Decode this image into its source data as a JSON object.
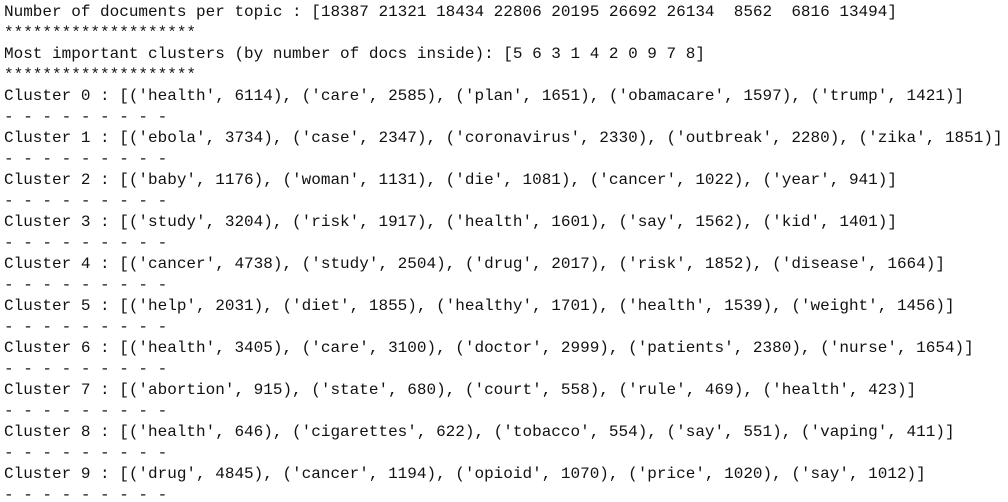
{
  "console": {
    "lines": [
      "Number of documents per topic : [18387 21321 18434 22806 20195 26692 26134  8562  6816 13494]",
      "********************",
      "Most important clusters (by number of docs inside): [5 6 3 1 4 2 0 9 7 8]",
      "********************",
      "Cluster 0 : [('health', 6114), ('care', 2585), ('plan', 1651), ('obamacare', 1597), ('trump', 1421)]",
      "- - - - - - - - -",
      "Cluster 1 : [('ebola', 3734), ('case', 2347), ('coronavirus', 2330), ('outbreak', 2280), ('zika', 1851)]",
      "- - - - - - - - -",
      "Cluster 2 : [('baby', 1176), ('woman', 1131), ('die', 1081), ('cancer', 1022), ('year', 941)]",
      "- - - - - - - - -",
      "Cluster 3 : [('study', 3204), ('risk', 1917), ('health', 1601), ('say', 1562), ('kid', 1401)]",
      "- - - - - - - - -",
      "Cluster 4 : [('cancer', 4738), ('study', 2504), ('drug', 2017), ('risk', 1852), ('disease', 1664)]",
      "- - - - - - - - -",
      "Cluster 5 : [('help', 2031), ('diet', 1855), ('healthy', 1701), ('health', 1539), ('weight', 1456)]",
      "- - - - - - - - -",
      "Cluster 6 : [('health', 3405), ('care', 3100), ('doctor', 2999), ('patients', 2380), ('nurse', 1654)]",
      "- - - - - - - - -",
      "Cluster 7 : [('abortion', 915), ('state', 680), ('court', 558), ('rule', 469), ('health', 423)]",
      "- - - - - - - - -",
      "Cluster 8 : [('health', 646), ('cigarettes', 622), ('tobacco', 554), ('say', 551), ('vaping', 411)]",
      "- - - - - - - - -",
      "Cluster 9 : [('drug', 4845), ('cancer', 1194), ('opioid', 1070), ('price', 1020), ('say', 1012)]",
      "- - - - - - - - -"
    ]
  }
}
